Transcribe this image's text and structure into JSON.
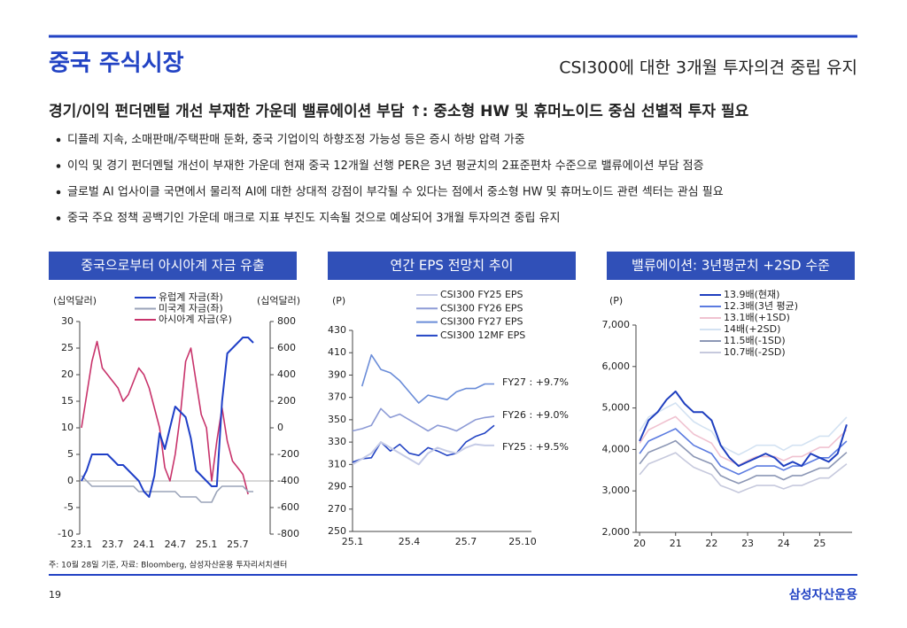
{
  "header": {
    "title": "중국 주식시장",
    "headline": "CSI300에 대한 3개월 투자의견 중립 유지"
  },
  "subtitle": "경기/이익 펀더멘털 개선 부재한 가운데 밸류에이션 부담 ↑: 중소형 HW 및 휴머노이드 중심 선별적 투자 필요",
  "bullets": [
    "디플레 지속, 소매판매/주택판매 둔화, 중국 기업이익 하향조정 가능성 등은 증시 하방 압력 가중",
    "이익 및 경기 펀더멘털 개선이 부재한 가운데 현재 중국 12개월 선행 PER은 3년 평균치의 2표준편차 수준으로 밸류에이션 부담 점증",
    "글로벌 AI 업사이클 국면에서 물리적 AI에 대한 상대적 강점이 부각될 수 있다는 점에서 중소형 HW 및 휴머노이드 관련 섹터는 관심 필요",
    "중국 주요 정책 공백기인 가운데 매크로 지표 부진도 지속될 것으로 예상되어 3개월 투자의견 중립 유지"
  ],
  "chart_data": [
    {
      "type": "line",
      "title": "중국으로부터 아시아계 자금 유출",
      "y_unit": "(십억달러)",
      "y2_unit": "(십억달러)",
      "categories": [
        "23.1",
        null,
        null,
        null,
        null,
        null,
        "23.7",
        null,
        null,
        null,
        null,
        null,
        "24.1",
        null,
        null,
        null,
        null,
        null,
        "24.7",
        null,
        null,
        null,
        null,
        null,
        "25.1",
        null,
        null,
        null,
        null,
        null,
        "25.7",
        null,
        null,
        null
      ],
      "ylim": [
        -10,
        30
      ],
      "yticks": [
        -10,
        -5,
        0,
        5,
        10,
        15,
        20,
        25,
        30
      ],
      "y2lim": [
        -800,
        800
      ],
      "y2ticks": [
        -800,
        -600,
        -400,
        -200,
        0,
        200,
        400,
        600,
        800
      ],
      "series": [
        {
          "name": "유럽계 자금(좌)",
          "color": "#1f3fc7",
          "axis": "y",
          "values": [
            0,
            2,
            5,
            5,
            5,
            5,
            4,
            3,
            3,
            2,
            1,
            0,
            -2,
            -3,
            1,
            9,
            6,
            10,
            14,
            13,
            12,
            8,
            2,
            1,
            0,
            -1,
            -1,
            15,
            24,
            25,
            26,
            27,
            27,
            26
          ]
        },
        {
          "name": "미국계 자금(좌)",
          "color": "#9aa3b8",
          "axis": "y",
          "values": [
            1,
            0,
            -1,
            -1,
            -1,
            -1,
            -1,
            -1,
            -1,
            -1,
            -1,
            -2,
            -2,
            -2,
            -2,
            -2,
            -2,
            -2,
            -2,
            -3,
            -3,
            -3,
            -3,
            -4,
            -4,
            -4,
            -2,
            -1,
            -1,
            -1,
            -1,
            -1,
            -2,
            -2
          ]
        },
        {
          "name": "아시아계 자금(우)",
          "color": "#c8336b",
          "axis": "y2",
          "values": [
            0,
            250,
            500,
            650,
            450,
            400,
            350,
            300,
            200,
            250,
            350,
            450,
            400,
            300,
            150,
            0,
            -300,
            -400,
            -200,
            100,
            500,
            600,
            350,
            100,
            0,
            -400,
            -100,
            150,
            -100,
            -250,
            -300,
            -350,
            -500,
            null
          ]
        }
      ]
    },
    {
      "type": "line",
      "title": "연간 EPS 전망치 추이",
      "y_unit": "(P)",
      "categories": [
        "25.1",
        null,
        null,
        null,
        null,
        null,
        "25.4",
        null,
        null,
        null,
        null,
        null,
        "25.7",
        null,
        null,
        null,
        null,
        null,
        "25.10"
      ],
      "ylim": [
        250,
        430
      ],
      "yticks": [
        250,
        270,
        290,
        310,
        330,
        350,
        370,
        390,
        410,
        430
      ],
      "series": [
        {
          "name": "CSI300 FY25 EPS",
          "color": "#c5cbe6",
          "values": [
            310,
            315,
            320,
            330,
            325,
            320,
            315,
            310,
            320,
            325,
            322,
            320,
            325,
            328,
            327,
            327,
            null,
            null,
            null
          ]
        },
        {
          "name": "CSI300 FY26 EPS",
          "color": "#8d9bd6",
          "values": [
            340,
            342,
            345,
            360,
            352,
            355,
            350,
            345,
            340,
            345,
            343,
            340,
            345,
            350,
            352,
            353,
            null,
            null,
            null
          ]
        },
        {
          "name": "CSI300 FY27 EPS",
          "color": "#6a8cd8",
          "values": [
            null,
            380,
            408,
            395,
            392,
            385,
            375,
            365,
            372,
            370,
            368,
            375,
            378,
            378,
            382,
            382,
            null,
            null,
            null
          ]
        },
        {
          "name": "CSI300 12MF EPS",
          "color": "#2344c4",
          "values": [
            312,
            315,
            316,
            330,
            322,
            328,
            320,
            318,
            325,
            322,
            318,
            320,
            330,
            335,
            338,
            345,
            null,
            null,
            null
          ]
        }
      ],
      "annotations": [
        "FY27 : +9.7%",
        "FY26 : +9.0%",
        "FY25 : +9.5%"
      ]
    },
    {
      "type": "line",
      "title": "밸류에이션: 3년평균치 +2SD 수준",
      "y_unit": "(P)",
      "x": [
        20,
        20.25,
        20.5,
        20.75,
        21,
        21.25,
        21.5,
        21.75,
        22,
        22.25,
        22.5,
        22.75,
        23,
        23.25,
        23.5,
        23.75,
        24,
        24.25,
        24.5,
        24.75,
        25,
        25.25,
        25.5,
        25.75
      ],
      "xlim": [
        19.9,
        25.9
      ],
      "xticks": [
        20,
        21,
        22,
        23,
        24,
        25
      ],
      "ylim": [
        2000,
        7000
      ],
      "yticks": [
        {
          "value": 2000,
          "label": "2,000"
        },
        {
          "value": 3000,
          "label": "3,000"
        },
        {
          "value": 4000,
          "label": "4,000"
        },
        {
          "value": 5000,
          "label": "5,000"
        },
        {
          "value": 6000,
          "label": "6,000"
        },
        {
          "value": 7000,
          "label": "7,000"
        }
      ],
      "series": [
        {
          "name": "13.9배(현재)",
          "color": "#1f3fbf",
          "values": [
            4200,
            4700,
            4900,
            5200,
            5400,
            5100,
            4900,
            4900,
            4700,
            4100,
            3800,
            3600,
            3700,
            3800,
            3900,
            3800,
            3600,
            3700,
            3600,
            3900,
            3800,
            3700,
            3900,
            4600
          ]
        },
        {
          "name": "12.3배(3년 평균)",
          "color": "#5b7be0",
          "values": [
            3900,
            4200,
            4300,
            4400,
            4500,
            4300,
            4100,
            4000,
            3900,
            3600,
            3500,
            3400,
            3500,
            3600,
            3600,
            3600,
            3500,
            3600,
            3600,
            3700,
            3800,
            3800,
            4000,
            4200
          ]
        },
        {
          "name": "13.1배(+1SD)",
          "color": "#f0c2d0",
          "values": [
            4150,
            4470,
            4580,
            4690,
            4790,
            4580,
            4370,
            4260,
            4150,
            3830,
            3730,
            3620,
            3730,
            3830,
            3830,
            3830,
            3730,
            3830,
            3830,
            3940,
            4050,
            4050,
            4260,
            4470
          ]
        },
        {
          "name": "14배(+2SD)",
          "color": "#d3e2f2",
          "values": [
            4440,
            4780,
            4890,
            5010,
            5120,
            4890,
            4670,
            4550,
            4440,
            4100,
            3980,
            3870,
            3980,
            4100,
            4100,
            4100,
            3980,
            4100,
            4100,
            4210,
            4320,
            4320,
            4550,
            4780
          ]
        },
        {
          "name": "11.5배(-1SD)",
          "color": "#8c97b5",
          "values": [
            3650,
            3930,
            4020,
            4110,
            4210,
            4020,
            3830,
            3740,
            3650,
            3370,
            3270,
            3180,
            3270,
            3370,
            3370,
            3370,
            3270,
            3370,
            3370,
            3460,
            3550,
            3550,
            3740,
            3930
          ]
        },
        {
          "name": "10.7배(-2SD)",
          "color": "#c6c9dd",
          "values": [
            3390,
            3650,
            3740,
            3830,
            3920,
            3740,
            3570,
            3480,
            3390,
            3130,
            3050,
            2960,
            3050,
            3130,
            3130,
            3130,
            3050,
            3130,
            3130,
            3220,
            3310,
            3310,
            3480,
            3650
          ]
        }
      ]
    }
  ],
  "footer": {
    "note": "주: 10월 28일 기준, 자료: Bloomberg, 삼성자산운용 투자리서치센터",
    "page": "19",
    "brand": "삼성자산운용"
  }
}
